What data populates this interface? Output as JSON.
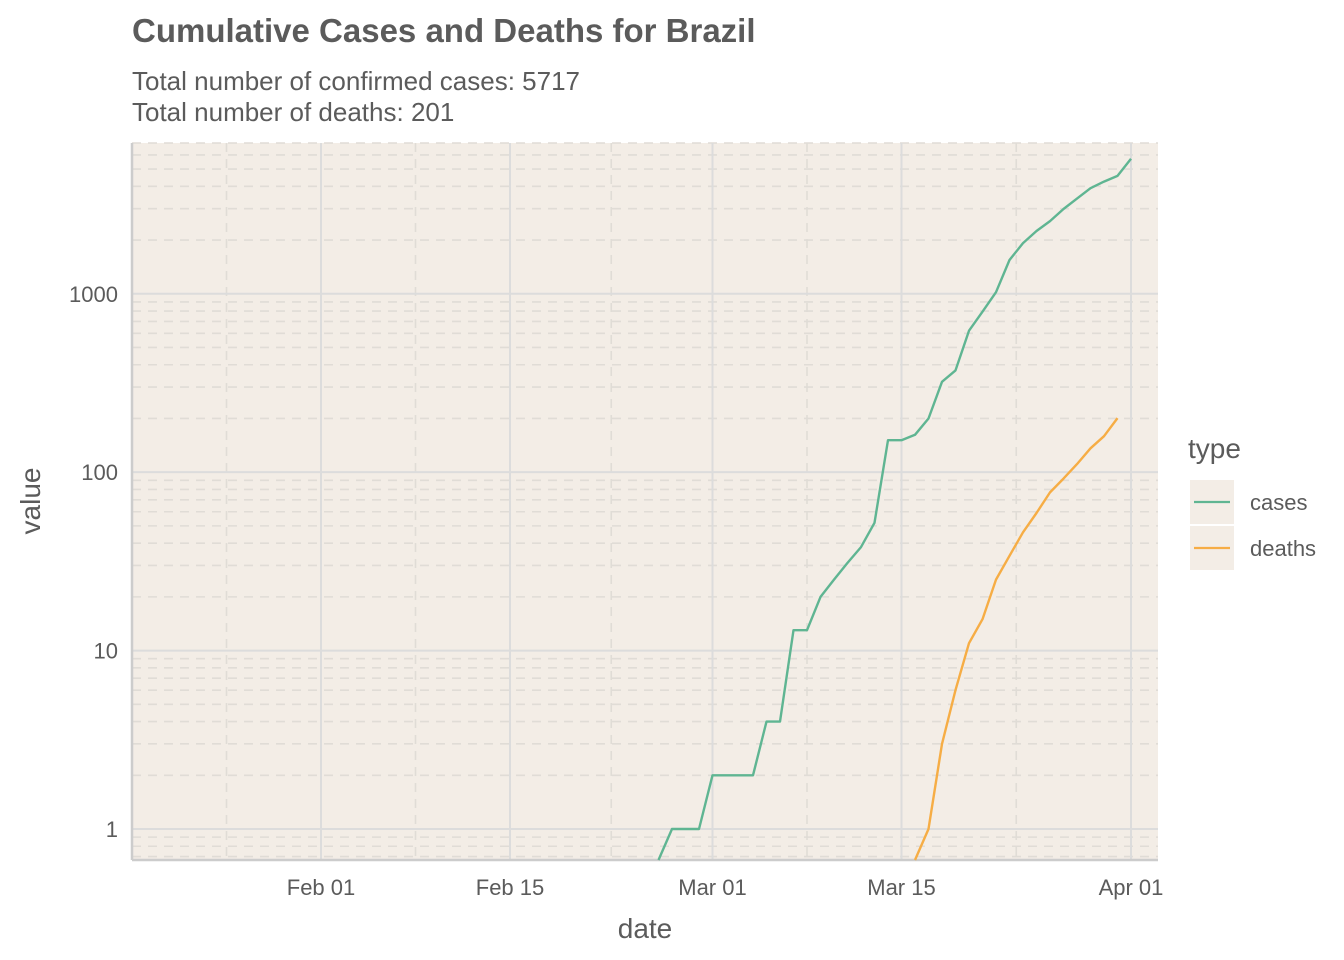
{
  "chart_data": {
    "type": "line",
    "title": "Cumulative Cases and Deaths for Brazil",
    "subtitle_lines": [
      "Total number of confirmed cases: 5717",
      "Total number of deaths: 201"
    ],
    "xlabel": "date",
    "ylabel": "value",
    "x_ticks": [
      {
        "date": "2020-02-01",
        "label": "Feb 01"
      },
      {
        "date": "2020-02-15",
        "label": "Feb 15"
      },
      {
        "date": "2020-03-01",
        "label": "Mar 01"
      },
      {
        "date": "2020-03-15",
        "label": "Mar 15"
      },
      {
        "date": "2020-04-01",
        "label": "Apr 01"
      }
    ],
    "y_scale": "log10",
    "y_ticks": [
      1,
      10,
      100,
      1000
    ],
    "ylim": [
      0.67,
      7000
    ],
    "xlim": [
      "2020-01-18",
      "2020-04-03"
    ],
    "grid": true,
    "background": "#f3ede6",
    "legend": {
      "title": "type",
      "position": "right",
      "entries": [
        "cases",
        "deaths"
      ]
    },
    "series": [
      {
        "name": "cases",
        "color": "#5fb592",
        "points": [
          [
            "2020-02-26",
            0.67
          ],
          [
            "2020-02-27",
            1
          ],
          [
            "2020-02-29",
            1
          ],
          [
            "2020-03-01",
            2
          ],
          [
            "2020-03-04",
            2
          ],
          [
            "2020-03-05",
            4
          ],
          [
            "2020-03-06",
            4
          ],
          [
            "2020-03-07",
            13
          ],
          [
            "2020-03-08",
            13
          ],
          [
            "2020-03-09",
            20
          ],
          [
            "2020-03-10",
            25
          ],
          [
            "2020-03-11",
            31
          ],
          [
            "2020-03-12",
            38
          ],
          [
            "2020-03-13",
            52
          ],
          [
            "2020-03-14",
            151
          ],
          [
            "2020-03-15",
            151
          ],
          [
            "2020-03-16",
            162
          ],
          [
            "2020-03-17",
            200
          ],
          [
            "2020-03-18",
            321
          ],
          [
            "2020-03-19",
            372
          ],
          [
            "2020-03-20",
            621
          ],
          [
            "2020-03-21",
            793
          ],
          [
            "2020-03-22",
            1021
          ],
          [
            "2020-03-23",
            1546
          ],
          [
            "2020-03-24",
            1924
          ],
          [
            "2020-03-25",
            2247
          ],
          [
            "2020-03-26",
            2554
          ],
          [
            "2020-03-27",
            2985
          ],
          [
            "2020-03-28",
            3417
          ],
          [
            "2020-03-29",
            3904
          ],
          [
            "2020-03-30",
            4256
          ],
          [
            "2020-03-31",
            4579
          ],
          [
            "2020-04-01",
            5717
          ]
        ]
      },
      {
        "name": "deaths",
        "color": "#f6ad45",
        "points": [
          [
            "2020-03-16",
            0.67
          ],
          [
            "2020-03-17",
            1
          ],
          [
            "2020-03-18",
            3
          ],
          [
            "2020-03-19",
            6
          ],
          [
            "2020-03-20",
            11
          ],
          [
            "2020-03-21",
            15
          ],
          [
            "2020-03-22",
            25
          ],
          [
            "2020-03-23",
            34
          ],
          [
            "2020-03-24",
            46
          ],
          [
            "2020-03-25",
            59
          ],
          [
            "2020-03-26",
            77
          ],
          [
            "2020-03-27",
            92
          ],
          [
            "2020-03-28",
            111
          ],
          [
            "2020-03-29",
            136
          ],
          [
            "2020-03-30",
            159
          ],
          [
            "2020-03-31",
            201
          ]
        ]
      }
    ]
  }
}
